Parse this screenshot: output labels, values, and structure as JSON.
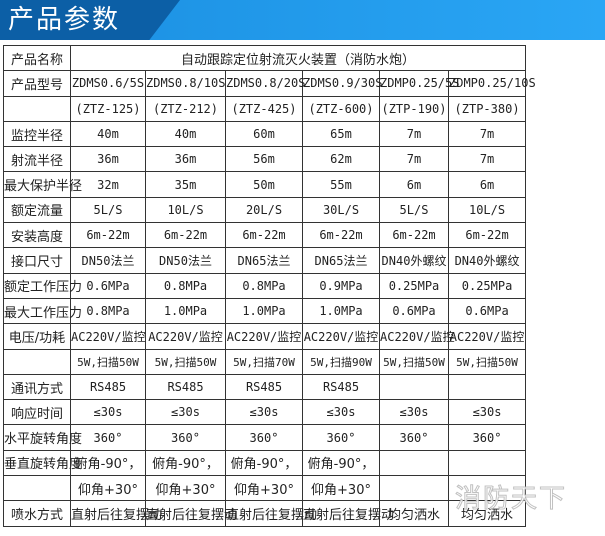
{
  "header": {
    "title": "产品参数"
  },
  "table": {
    "product_name_label": "产品名称",
    "product_name": "自动跟踪定位射流灭火装置（消防水炮）",
    "rows": [
      {
        "label": "产品型号",
        "values": [
          "ZDMS0.6/5S",
          "ZDMS0.8/10S",
          "ZDMS0.8/20S",
          "ZDMS0.9/30S",
          "ZDMP0.25/5S",
          "ZDMP0.25/10S"
        ]
      },
      {
        "label": "",
        "values": [
          "(ZTZ-125)",
          "(ZTZ-212)",
          "(ZTZ-425)",
          "(ZTZ-600)",
          "(ZTP-190)",
          "(ZTP-380)"
        ]
      },
      {
        "label": "监控半径",
        "values": [
          "40m",
          "40m",
          "60m",
          "65m",
          "7m",
          "7m"
        ]
      },
      {
        "label": "射流半径",
        "values": [
          "36m",
          "36m",
          "56m",
          "62m",
          "7m",
          "7m"
        ]
      },
      {
        "label": "最大保护半径",
        "values": [
          "32m",
          "35m",
          "50m",
          "55m",
          "6m",
          "6m"
        ]
      },
      {
        "label": "额定流量",
        "values": [
          "5L/S",
          "10L/S",
          "20L/S",
          "30L/S",
          "5L/S",
          "10L/S"
        ]
      },
      {
        "label": "安装高度",
        "values": [
          "6m-22m",
          "6m-22m",
          "6m-22m",
          "6m-22m",
          "6m-22m",
          "6m-22m"
        ]
      },
      {
        "label": "接口尺寸",
        "values": [
          "DN50法兰",
          "DN50法兰",
          "DN65法兰",
          "DN65法兰",
          "DN40外螺纹",
          "DN40外螺纹"
        ]
      },
      {
        "label": "额定工作压力",
        "values": [
          "0.6MPa",
          "0.8MPa",
          "0.8MPa",
          "0.9MPa",
          "0.25MPa",
          "0.25MPa"
        ]
      },
      {
        "label": "最大工作压力",
        "values": [
          "0.8MPa",
          "1.0MPa",
          "1.0MPa",
          "1.0MPa",
          "0.6MPa",
          "0.6MPa"
        ]
      },
      {
        "label": "电压/功耗",
        "values": [
          "AC220V/监控",
          "AC220V/监控",
          "AC220V/监控",
          "AC220V/监控",
          "AC220V/监控",
          "AC220V/监控"
        ]
      },
      {
        "label": "",
        "values": [
          "5W,扫描50W",
          "5W,扫描50W",
          "5W,扫描70W",
          "5W,扫描90W",
          "5W,扫描50W",
          "5W,扫描50W"
        ]
      },
      {
        "label": "通讯方式",
        "values": [
          "RS485",
          "RS485",
          "RS485",
          "RS485",
          "",
          ""
        ]
      },
      {
        "label": "响应时间",
        "values": [
          "≤30s",
          "≤30s",
          "≤30s",
          "≤30s",
          "≤30s",
          "≤30s"
        ]
      },
      {
        "label": "水平旋转角度",
        "values": [
          "360°",
          "360°",
          "360°",
          "360°",
          "360°",
          "360°"
        ]
      },
      {
        "label": "垂直旋转角度",
        "values": [
          "俯角-90°，",
          "俯角-90°，",
          "俯角-90°，",
          "俯角-90°，",
          "",
          ""
        ]
      },
      {
        "label": "",
        "values": [
          "仰角+30°",
          "仰角+30°",
          "仰角+30°",
          "仰角+30°",
          "",
          ""
        ]
      },
      {
        "label": "喷水方式",
        "values": [
          "直射后往复摆动",
          "直射后往复摆动",
          "直射后往复摆动",
          "直射后往复摆动",
          "均匀洒水",
          "均匀洒水"
        ]
      }
    ]
  },
  "watermark": "消防天下"
}
